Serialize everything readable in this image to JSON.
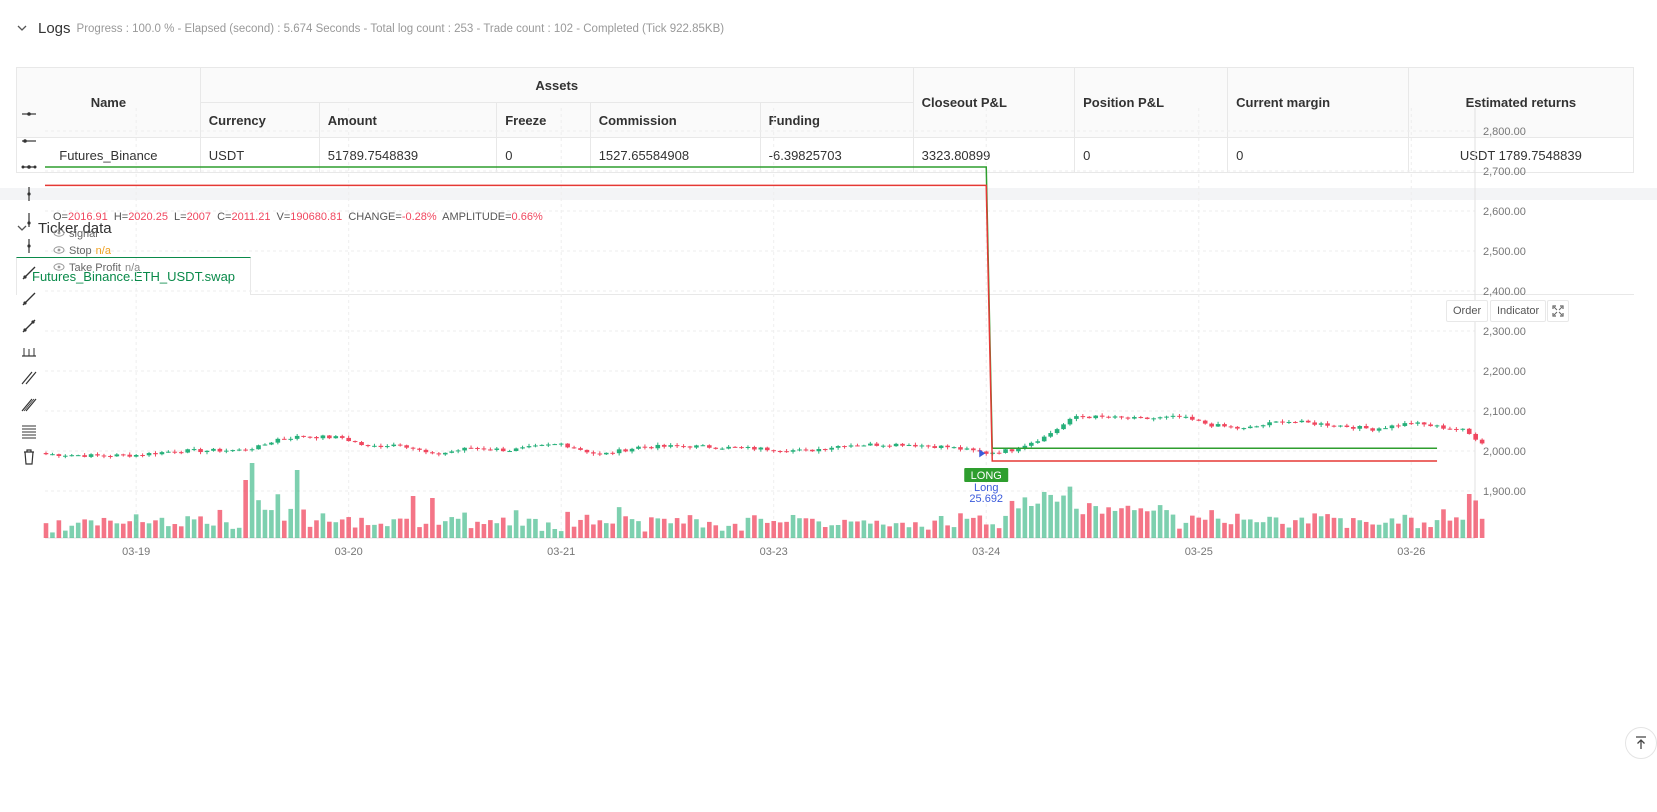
{
  "logs": {
    "title": "Logs",
    "meta": "Progress : 100.0 % - Elapsed (second) : 5.674  Seconds - Total log count : 253 - Trade count : 102 - Completed (Tick 922.85KB)",
    "table": {
      "col_name": "Name",
      "col_assets": "Assets",
      "sub_headers": [
        "Currency",
        "Amount",
        "Freeze",
        "Commission",
        "Funding"
      ],
      "col_closeout": "Closeout P&L",
      "col_position": "Position P&L",
      "col_margin": "Current margin",
      "col_returns": "Estimated returns",
      "row": {
        "name": "Futures_Binance",
        "currency": "USDT",
        "amount": "51789.7548839",
        "freeze": "0",
        "commission": "1527.65584908",
        "funding": "-6.39825703",
        "closeout": "3323.80899",
        "position": "0",
        "margin": "0",
        "returns": "USDT 1789.7548839"
      }
    }
  },
  "ticker": {
    "title": "Ticker data",
    "tab": "Futures_Binance.ETH_USDT.swap",
    "buttons": {
      "order": "Order",
      "indicator": "Indicator"
    }
  },
  "colors": {
    "up": "#26b07a",
    "down": "#f0475f",
    "stop": "#e53935",
    "take_profit": "#2e9e2e",
    "accent": "#0a8a4a"
  },
  "chart_data": {
    "type": "candlestick",
    "ohlc_header": {
      "o_label": "O=",
      "o": "2016.91",
      "h_label": "H=",
      "h": "2020.25",
      "l_label": "L=",
      "l": "2007",
      "c_label": "C=",
      "c": "2011.21",
      "v_label": "V=",
      "v": "190680.81",
      "change_label": "CHANGE=",
      "change": "-0.28%",
      "amp_label": "AMPLITUDE=",
      "amp": "0.66%"
    },
    "legend": [
      {
        "name": "signal",
        "value": ""
      },
      {
        "name": "Stop",
        "value": "n/a"
      },
      {
        "name": "Take Profit",
        "value": "n/a"
      }
    ],
    "y_ticks": [
      "2,800.00",
      "2,700.00",
      "2,600.00",
      "2,500.00",
      "2,400.00",
      "2,300.00",
      "2,200.00",
      "2,100.00",
      "2,000.00",
      "1,900.00"
    ],
    "y_tick_values": [
      2800,
      2700,
      2600,
      2500,
      2400,
      2300,
      2200,
      2100,
      2000,
      1900
    ],
    "ylim": [
      1885,
      2825
    ],
    "x_ticks": [
      "03-19",
      "03-20",
      "03-21",
      "03-23",
      "03-24",
      "03-25",
      "03-26"
    ],
    "x_tick_bars": [
      14,
      47,
      80,
      113,
      146,
      179,
      212
    ],
    "bar_count": 224,
    "anchors": [
      [
        0,
        1992
      ],
      [
        8,
        1988
      ],
      [
        14,
        1990
      ],
      [
        20,
        2000
      ],
      [
        30,
        2002
      ],
      [
        33,
        2010
      ],
      [
        36,
        2030
      ],
      [
        40,
        2037
      ],
      [
        46,
        2033
      ],
      [
        50,
        2010
      ],
      [
        55,
        2018
      ],
      [
        60,
        1990
      ],
      [
        66,
        2008
      ],
      [
        72,
        2002
      ],
      [
        80,
        2018
      ],
      [
        86,
        1990
      ],
      [
        92,
        2010
      ],
      [
        100,
        2012
      ],
      [
        112,
        2005
      ],
      [
        118,
        2000
      ],
      [
        124,
        2015
      ],
      [
        133,
        2017
      ],
      [
        140,
        2010
      ],
      [
        146,
        1995
      ],
      [
        150,
        2003
      ],
      [
        155,
        2035
      ],
      [
        160,
        2087
      ],
      [
        170,
        2080
      ],
      [
        176,
        2085
      ],
      [
        181,
        2065
      ],
      [
        186,
        2055
      ],
      [
        192,
        2075
      ],
      [
        200,
        2065
      ],
      [
        206,
        2055
      ],
      [
        212,
        2070
      ],
      [
        220,
        2052
      ],
      [
        223,
        2022
      ]
    ],
    "stop": {
      "start_value": 2664,
      "end_value": 1975,
      "switch_bar": 146,
      "end_bar": 216
    },
    "take_profit": {
      "start_value": 2710,
      "end_value": 2007,
      "switch_bar": 146,
      "end_bar": 216
    },
    "signal": {
      "bar": 146,
      "label": "LONG",
      "sub_label": "Long",
      "qty": "25.692"
    }
  }
}
